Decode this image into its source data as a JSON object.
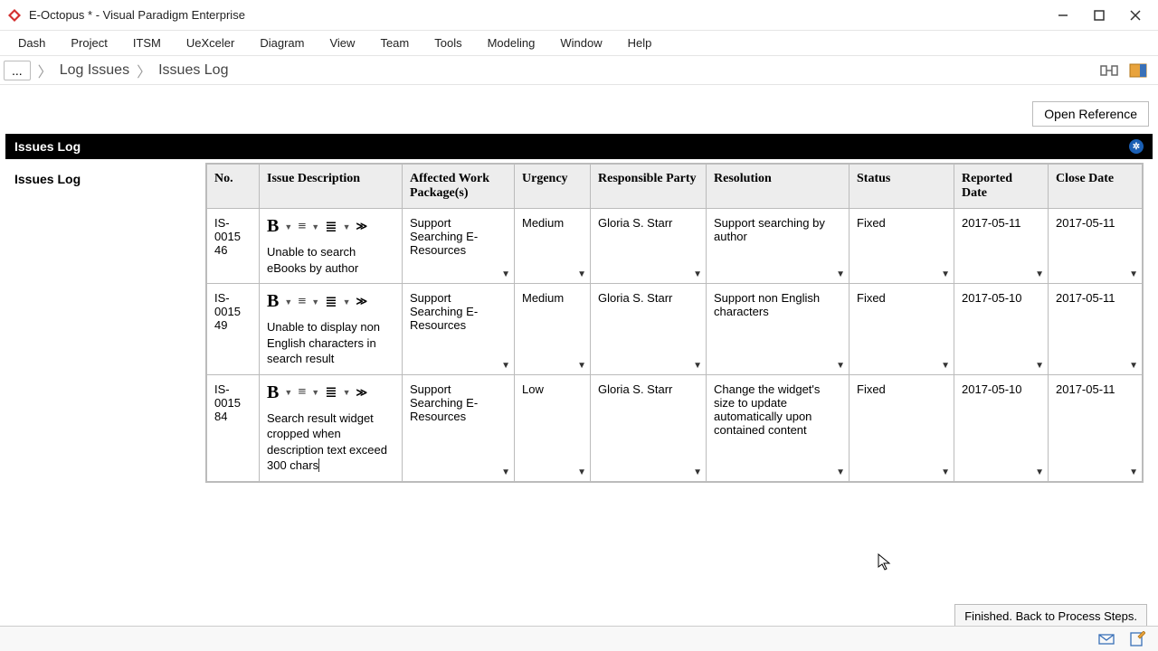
{
  "window": {
    "title": "E-Octopus * - Visual Paradigm Enterprise"
  },
  "menubar": [
    "Dash",
    "Project",
    "ITSM",
    "UeXceler",
    "Diagram",
    "View",
    "Team",
    "Tools",
    "Modeling",
    "Window",
    "Help"
  ],
  "breadcrumb": {
    "root": "...",
    "items": [
      "Log Issues",
      "Issues Log"
    ]
  },
  "buttons": {
    "open_reference": "Open Reference",
    "finished": "Finished. Back to Process Steps."
  },
  "section": {
    "title": "Issues Log",
    "side_label": "Issues Log"
  },
  "table": {
    "columns": [
      "No.",
      "Issue Description",
      "Affected Work Package(s)",
      "Urgency",
      "Responsible Party",
      "Resolution",
      "Status",
      "Reported Date",
      "Close Date"
    ],
    "rows": [
      {
        "no": "IS-001546",
        "desc": "Unable to search eBooks by author",
        "affected": "Support Searching E-Resources",
        "urgency": "Medium",
        "resp": "Gloria S. Starr",
        "resolution": "Support searching by author",
        "status": "Fixed",
        "reported": "2017-05-11",
        "closed": "2017-05-11"
      },
      {
        "no": "IS-001549",
        "desc": "Unable to display non English characters in search result",
        "affected": "Support Searching E-Resources",
        "urgency": "Medium",
        "resp": "Gloria S. Starr",
        "resolution": "Support non English characters",
        "status": "Fixed",
        "reported": "2017-05-10",
        "closed": "2017-05-11"
      },
      {
        "no": "IS-001584",
        "desc": "Search result widget cropped when description text exceed 300 chars",
        "affected": "Support Searching E-Resources",
        "urgency": "Low",
        "resp": "Gloria S. Starr",
        "resolution": "Change the widget's size to update automatically upon contained content",
        "status": "Fixed",
        "reported": "2017-05-10",
        "closed": "2017-05-11"
      }
    ]
  },
  "style": {
    "header_bg": "#ededed",
    "border": "#bbbbbb",
    "blackbar_bg": "#000000",
    "gear_bg": "#1a5fb4"
  }
}
